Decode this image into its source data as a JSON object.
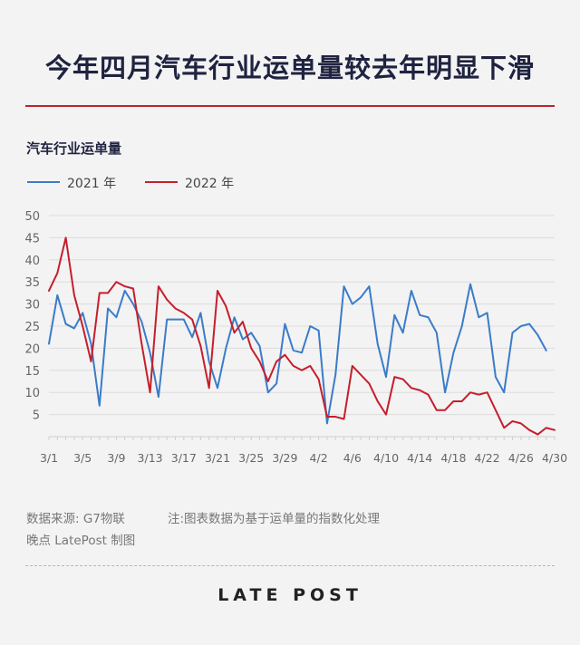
{
  "title": "今年四月汽车行业运单量较去年明显下滑",
  "footer": {
    "source": "数据来源: G7物联",
    "note": "注:图表数据为基于运单量的指数化处理",
    "credit": "晚点 LatePost 制图"
  },
  "logo": "LATE POST",
  "colors": {
    "series_2021": "#3a7cc9",
    "series_2022": "#c61e2c",
    "accent": "#c4202a"
  },
  "chart_data": {
    "type": "line",
    "title": "",
    "ylabel": "汽车行业运单量",
    "xlabel": "",
    "ylim": [
      0,
      50
    ],
    "yticks": [
      5,
      10,
      15,
      20,
      25,
      30,
      35,
      40,
      45,
      50
    ],
    "x": [
      "3/1",
      "3/2",
      "3/3",
      "3/4",
      "3/5",
      "3/6",
      "3/7",
      "3/8",
      "3/9",
      "3/10",
      "3/11",
      "3/12",
      "3/13",
      "3/14",
      "3/15",
      "3/16",
      "3/17",
      "3/18",
      "3/19",
      "3/20",
      "3/21",
      "3/22",
      "3/23",
      "3/24",
      "3/25",
      "3/26",
      "3/27",
      "3/28",
      "3/29",
      "3/30",
      "3/31",
      "4/1",
      "4/2",
      "4/3",
      "4/4",
      "4/5",
      "4/6",
      "4/7",
      "4/8",
      "4/9",
      "4/10",
      "4/11",
      "4/12",
      "4/13",
      "4/14",
      "4/15",
      "4/16",
      "4/17",
      "4/18",
      "4/19",
      "4/20",
      "4/21",
      "4/22",
      "4/23",
      "4/24",
      "4/25",
      "4/26",
      "4/27",
      "4/28",
      "4/29",
      "4/30"
    ],
    "xticks": [
      "3/1",
      "3/5",
      "3/9",
      "3/13",
      "3/17",
      "3/21",
      "3/25",
      "3/29",
      "4/2",
      "4/6",
      "4/10",
      "4/14",
      "4/18",
      "4/22",
      "4/26",
      "4/30"
    ],
    "grid": true,
    "legend": "top-left",
    "series": [
      {
        "name": "2021 年",
        "values": [
          21,
          32,
          25.5,
          24.5,
          28,
          21,
          7,
          29,
          27,
          33,
          30,
          26,
          19,
          9,
          26.5,
          26.5,
          26.5,
          22.5,
          28,
          17,
          11,
          20,
          27,
          22,
          23.5,
          20.5,
          10,
          12,
          25.5,
          19.5,
          19,
          25,
          24,
          3,
          14,
          34,
          30,
          31.5,
          34,
          21,
          13.5,
          27.5,
          23.5,
          33,
          27.5,
          27,
          23.5,
          10,
          19,
          25,
          34.5,
          27,
          28,
          13.5,
          10,
          23.5,
          25,
          25.5,
          23,
          19.5,
          null
        ]
      },
      {
        "name": "2022 年",
        "values": [
          33,
          37,
          45,
          32,
          25,
          17,
          32.5,
          32.5,
          35,
          34,
          33.5,
          21,
          10,
          34,
          31,
          29,
          28,
          26.5,
          20.5,
          11,
          33,
          29.5,
          23.5,
          26,
          20,
          17,
          12.5,
          17,
          18.5,
          16,
          15,
          16,
          13,
          4.5,
          4.5,
          4,
          16,
          14,
          12,
          8,
          5,
          13.5,
          13,
          11,
          10.5,
          9.5,
          6,
          6,
          8,
          8,
          10,
          9.5,
          10,
          6,
          2,
          3.5,
          3,
          1.5,
          0.5,
          2,
          1.5
        ]
      }
    ]
  }
}
